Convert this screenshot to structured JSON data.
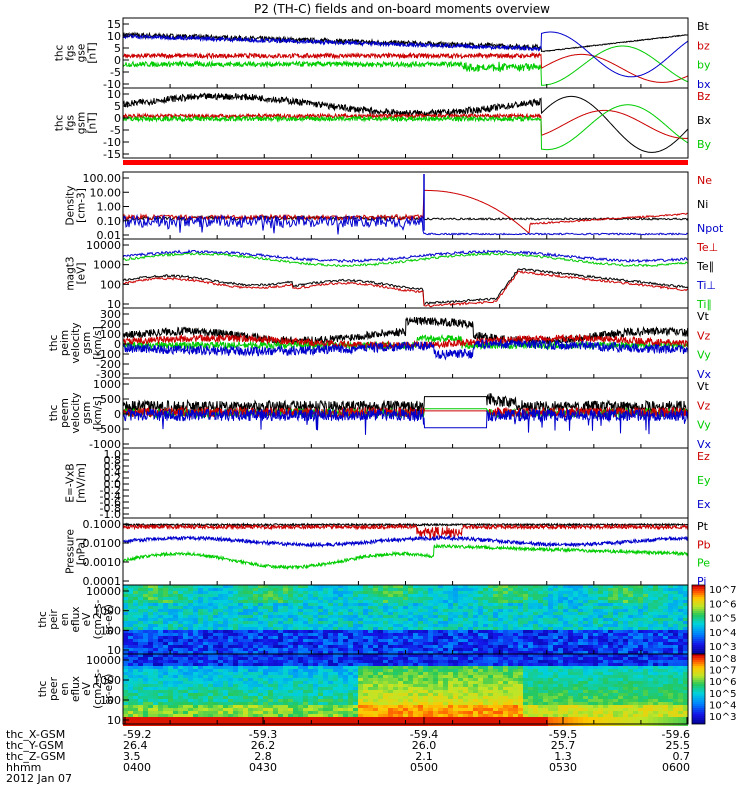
{
  "chart_data": {
    "type": "line",
    "title": "P2 (TH-C) fields and on-board moments overview",
    "x_ticks": [
      "0400",
      "0430",
      "0500",
      "0530",
      "0600"
    ],
    "panels": [
      {
        "id": "fgs_gse",
        "ylabel": [
          "thc",
          "fgs",
          "gse",
          "[nT]"
        ],
        "yticks": [
          "15",
          "10",
          "5",
          "0",
          "-5",
          "-10"
        ],
        "ylim": [
          -10,
          15
        ],
        "scale": "linear",
        "series": [
          {
            "name": "Bt",
            "color": "#000000"
          },
          {
            "name": "bz",
            "color": "#cc0000"
          },
          {
            "name": "by",
            "color": "#00cc00"
          },
          {
            "name": "bx",
            "color": "#0000cc"
          }
        ]
      },
      {
        "id": "fgs_gsm",
        "ylabel": [
          "thc",
          "fgs",
          "gsm",
          "[nT]"
        ],
        "yticks": [
          "10",
          "5",
          "0",
          "-5",
          "-10",
          "-15"
        ],
        "ylim": [
          -15,
          10
        ],
        "scale": "linear",
        "series": [
          {
            "name": "Bz",
            "color": "#cc0000"
          },
          {
            "name": "Bx",
            "color": "#000000"
          },
          {
            "name": "By",
            "color": "#00cc00"
          }
        ]
      },
      {
        "id": "density",
        "ylabel": [
          "Density",
          "[cm-3]"
        ],
        "yticks": [
          "100.00",
          "10.00",
          "1.00",
          "0.10",
          "0.01"
        ],
        "scale": "log",
        "series": [
          {
            "name": "Ne",
            "color": "#cc0000"
          },
          {
            "name": "Ni",
            "color": "#000000"
          },
          {
            "name": "Npot",
            "color": "#0000cc"
          }
        ]
      },
      {
        "id": "temp",
        "ylabel": [
          "magt3",
          "[eV]"
        ],
        "yticks": [
          "10000",
          "1000",
          "100",
          "10"
        ],
        "scale": "log",
        "series": [
          {
            "name": "Te⊥",
            "color": "#cc0000"
          },
          {
            "name": "Te∥",
            "color": "#000000"
          },
          {
            "name": "Ti⊥",
            "color": "#0000cc"
          },
          {
            "name": "Ti∥",
            "color": "#00cc00"
          }
        ]
      },
      {
        "id": "peim",
        "ylabel": [
          "thc",
          "peim",
          "velocity",
          "gsm",
          "[km/s]"
        ],
        "yticks": [
          "300",
          "200",
          "100",
          "0",
          "-100",
          "-200",
          "-300"
        ],
        "ylim": [
          -300,
          300
        ],
        "scale": "linear",
        "series": [
          {
            "name": "Vt",
            "color": "#000000"
          },
          {
            "name": "Vz",
            "color": "#cc0000"
          },
          {
            "name": "Vy",
            "color": "#00cc00"
          },
          {
            "name": "Vx",
            "color": "#0000cc"
          }
        ]
      },
      {
        "id": "peem",
        "ylabel": [
          "thc",
          "peem",
          "velocity",
          "gsm",
          "[km/s]"
        ],
        "yticks": [
          "1000",
          "500",
          "0",
          "-500",
          "-1000"
        ],
        "ylim": [
          -1000,
          1000
        ],
        "scale": "linear",
        "series": [
          {
            "name": "Vt",
            "color": "#000000"
          },
          {
            "name": "Vz",
            "color": "#cc0000"
          },
          {
            "name": "Vy",
            "color": "#00cc00"
          },
          {
            "name": "Vx",
            "color": "#0000cc"
          }
        ]
      },
      {
        "id": "efield",
        "ylabel": [
          "E=-VxB",
          "[mV/m]"
        ],
        "yticks": [
          "1.0",
          "0.8",
          "0.6",
          "0.4",
          "0.2",
          "0.0",
          "-0.2",
          "-0.4",
          "-0.6",
          "-0.8",
          "-1.0"
        ],
        "ylim": [
          -1,
          1
        ],
        "scale": "linear",
        "series": [
          {
            "name": "Ez",
            "color": "#cc0000"
          },
          {
            "name": "Ey",
            "color": "#00cc00"
          },
          {
            "name": "Ex",
            "color": "#0000cc"
          }
        ]
      },
      {
        "id": "pressure",
        "ylabel": [
          "Pressure",
          "[nPa]"
        ],
        "yticks": [
          "0.1000",
          "0.0100",
          "0.0010",
          "0.0001"
        ],
        "scale": "log",
        "series": [
          {
            "name": "Pt",
            "color": "#000000"
          },
          {
            "name": "Pb",
            "color": "#cc0000"
          },
          {
            "name": "Pe",
            "color": "#00cc00"
          },
          {
            "name": "Pi",
            "color": "#0000cc"
          }
        ]
      },
      {
        "id": "peir",
        "type": "heatmap",
        "ylabel": [
          "thc",
          "peir",
          "en",
          "eflux",
          "eV",
          "(cm2-s-",
          "sr-eV)"
        ],
        "yticks": [
          "10000",
          "1000",
          "100",
          "10"
        ],
        "scale": "log",
        "colorbar": [
          "10^7",
          "10^6",
          "10^5",
          "10^4",
          "10^3"
        ]
      },
      {
        "id": "peer",
        "type": "heatmap",
        "ylabel": [
          "thc",
          "peer",
          "en",
          "eflux",
          "eV",
          "(cm2-s-",
          "sr-eV)"
        ],
        "yticks": [
          "10000",
          "1000",
          "100",
          "10"
        ],
        "scale": "log",
        "colorbar": [
          "10^8",
          "10^7",
          "10^6",
          "10^5",
          "10^4",
          "10^3"
        ]
      }
    ],
    "orbit_rows": [
      {
        "label": "thc_X-GSM",
        "values": [
          "-59.2",
          "-59.3",
          "-59.4",
          "-59.5",
          "-59.6"
        ]
      },
      {
        "label": "thc_Y-GSM",
        "values": [
          "26.4",
          "26.2",
          "26.0",
          "25.7",
          "25.5"
        ]
      },
      {
        "label": "thc_Z-GSM",
        "values": [
          "3.5",
          "2.8",
          "2.1",
          "1.3",
          "0.7"
        ]
      },
      {
        "label": "hhmm",
        "values": [
          "0400",
          "0430",
          "0500",
          "0530",
          "0600"
        ]
      }
    ],
    "date": "2012 Jan 07"
  }
}
